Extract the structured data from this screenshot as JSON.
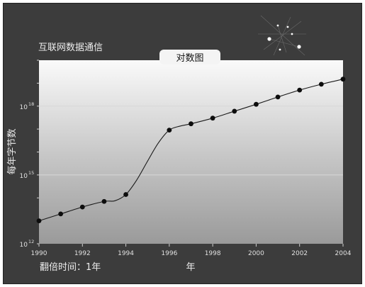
{
  "header": {
    "title": "互联网数据通信"
  },
  "colors": {
    "frame_background": "#3c3c3c",
    "tab_background": "#f4f4f4",
    "text_light": "#ececec",
    "line": "#1a1a1a",
    "marker": "#0d0d0d",
    "gridline": "#d8d8d8"
  },
  "chart_data": {
    "type": "line",
    "title": "对数图",
    "xlabel": "年",
    "ylabel": "每年字节数",
    "annotation": "翻倍时间：1年",
    "y_scale": "log10",
    "xlim": [
      1990,
      2004
    ],
    "ylim": [
      1000000000000.0,
      1e+20
    ],
    "grid": true,
    "x_ticks": [
      1990,
      1992,
      1994,
      1996,
      1998,
      2000,
      2002,
      2004
    ],
    "y_ticks": [
      {
        "value": 1000000000000.0,
        "base": "10",
        "exponent": "12"
      },
      {
        "value": 1000000000000000.0,
        "base": "10",
        "exponent": "15"
      },
      {
        "value": 1e+18,
        "base": "10",
        "exponent": "18"
      }
    ],
    "points": [
      {
        "x": 1990,
        "y": 10000000000000.0
      },
      {
        "x": 1991,
        "y": 20000000000000.0
      },
      {
        "x": 1992,
        "y": 40000000000000.0
      },
      {
        "x": 1993,
        "y": 70000000000000.0
      },
      {
        "x": 1994,
        "y": 140000000000000.0
      },
      {
        "x": 1996,
        "y": 9e+16
      },
      {
        "x": 1997,
        "y": 1.7e+17
      },
      {
        "x": 1998,
        "y": 3e+17
      },
      {
        "x": 1999,
        "y": 6e+17
      },
      {
        "x": 2000,
        "y": 1.2e+18
      },
      {
        "x": 2001,
        "y": 2.5e+18
      },
      {
        "x": 2002,
        "y": 5e+18
      },
      {
        "x": 2003,
        "y": 9e+18
      },
      {
        "x": 2004,
        "y": 1.5e+19
      }
    ],
    "curve": [
      {
        "x": 1990,
        "y": 10000000000000.0
      },
      {
        "x": 1991,
        "y": 20000000000000.0
      },
      {
        "x": 1992,
        "y": 40000000000000.0
      },
      {
        "x": 1993,
        "y": 70000000000000.0
      },
      {
        "x": 1993.5,
        "y": 75000000000000.0
      },
      {
        "x": 1994,
        "y": 140000000000000.0
      },
      {
        "x": 1994.5,
        "y": 600000000000000.0
      },
      {
        "x": 1995,
        "y": 4000000000000000.0
      },
      {
        "x": 1995.5,
        "y": 2.5e+16
      },
      {
        "x": 1996,
        "y": 9e+16
      },
      {
        "x": 1996.5,
        "y": 1.35e+17
      },
      {
        "x": 1997,
        "y": 1.7e+17
      },
      {
        "x": 1998,
        "y": 3e+17
      },
      {
        "x": 1999,
        "y": 6e+17
      },
      {
        "x": 2000,
        "y": 1.2e+18
      },
      {
        "x": 2001,
        "y": 2.5e+18
      },
      {
        "x": 2002,
        "y": 5e+18
      },
      {
        "x": 2003,
        "y": 9e+18
      },
      {
        "x": 2004,
        "y": 1.5e+19
      }
    ]
  }
}
